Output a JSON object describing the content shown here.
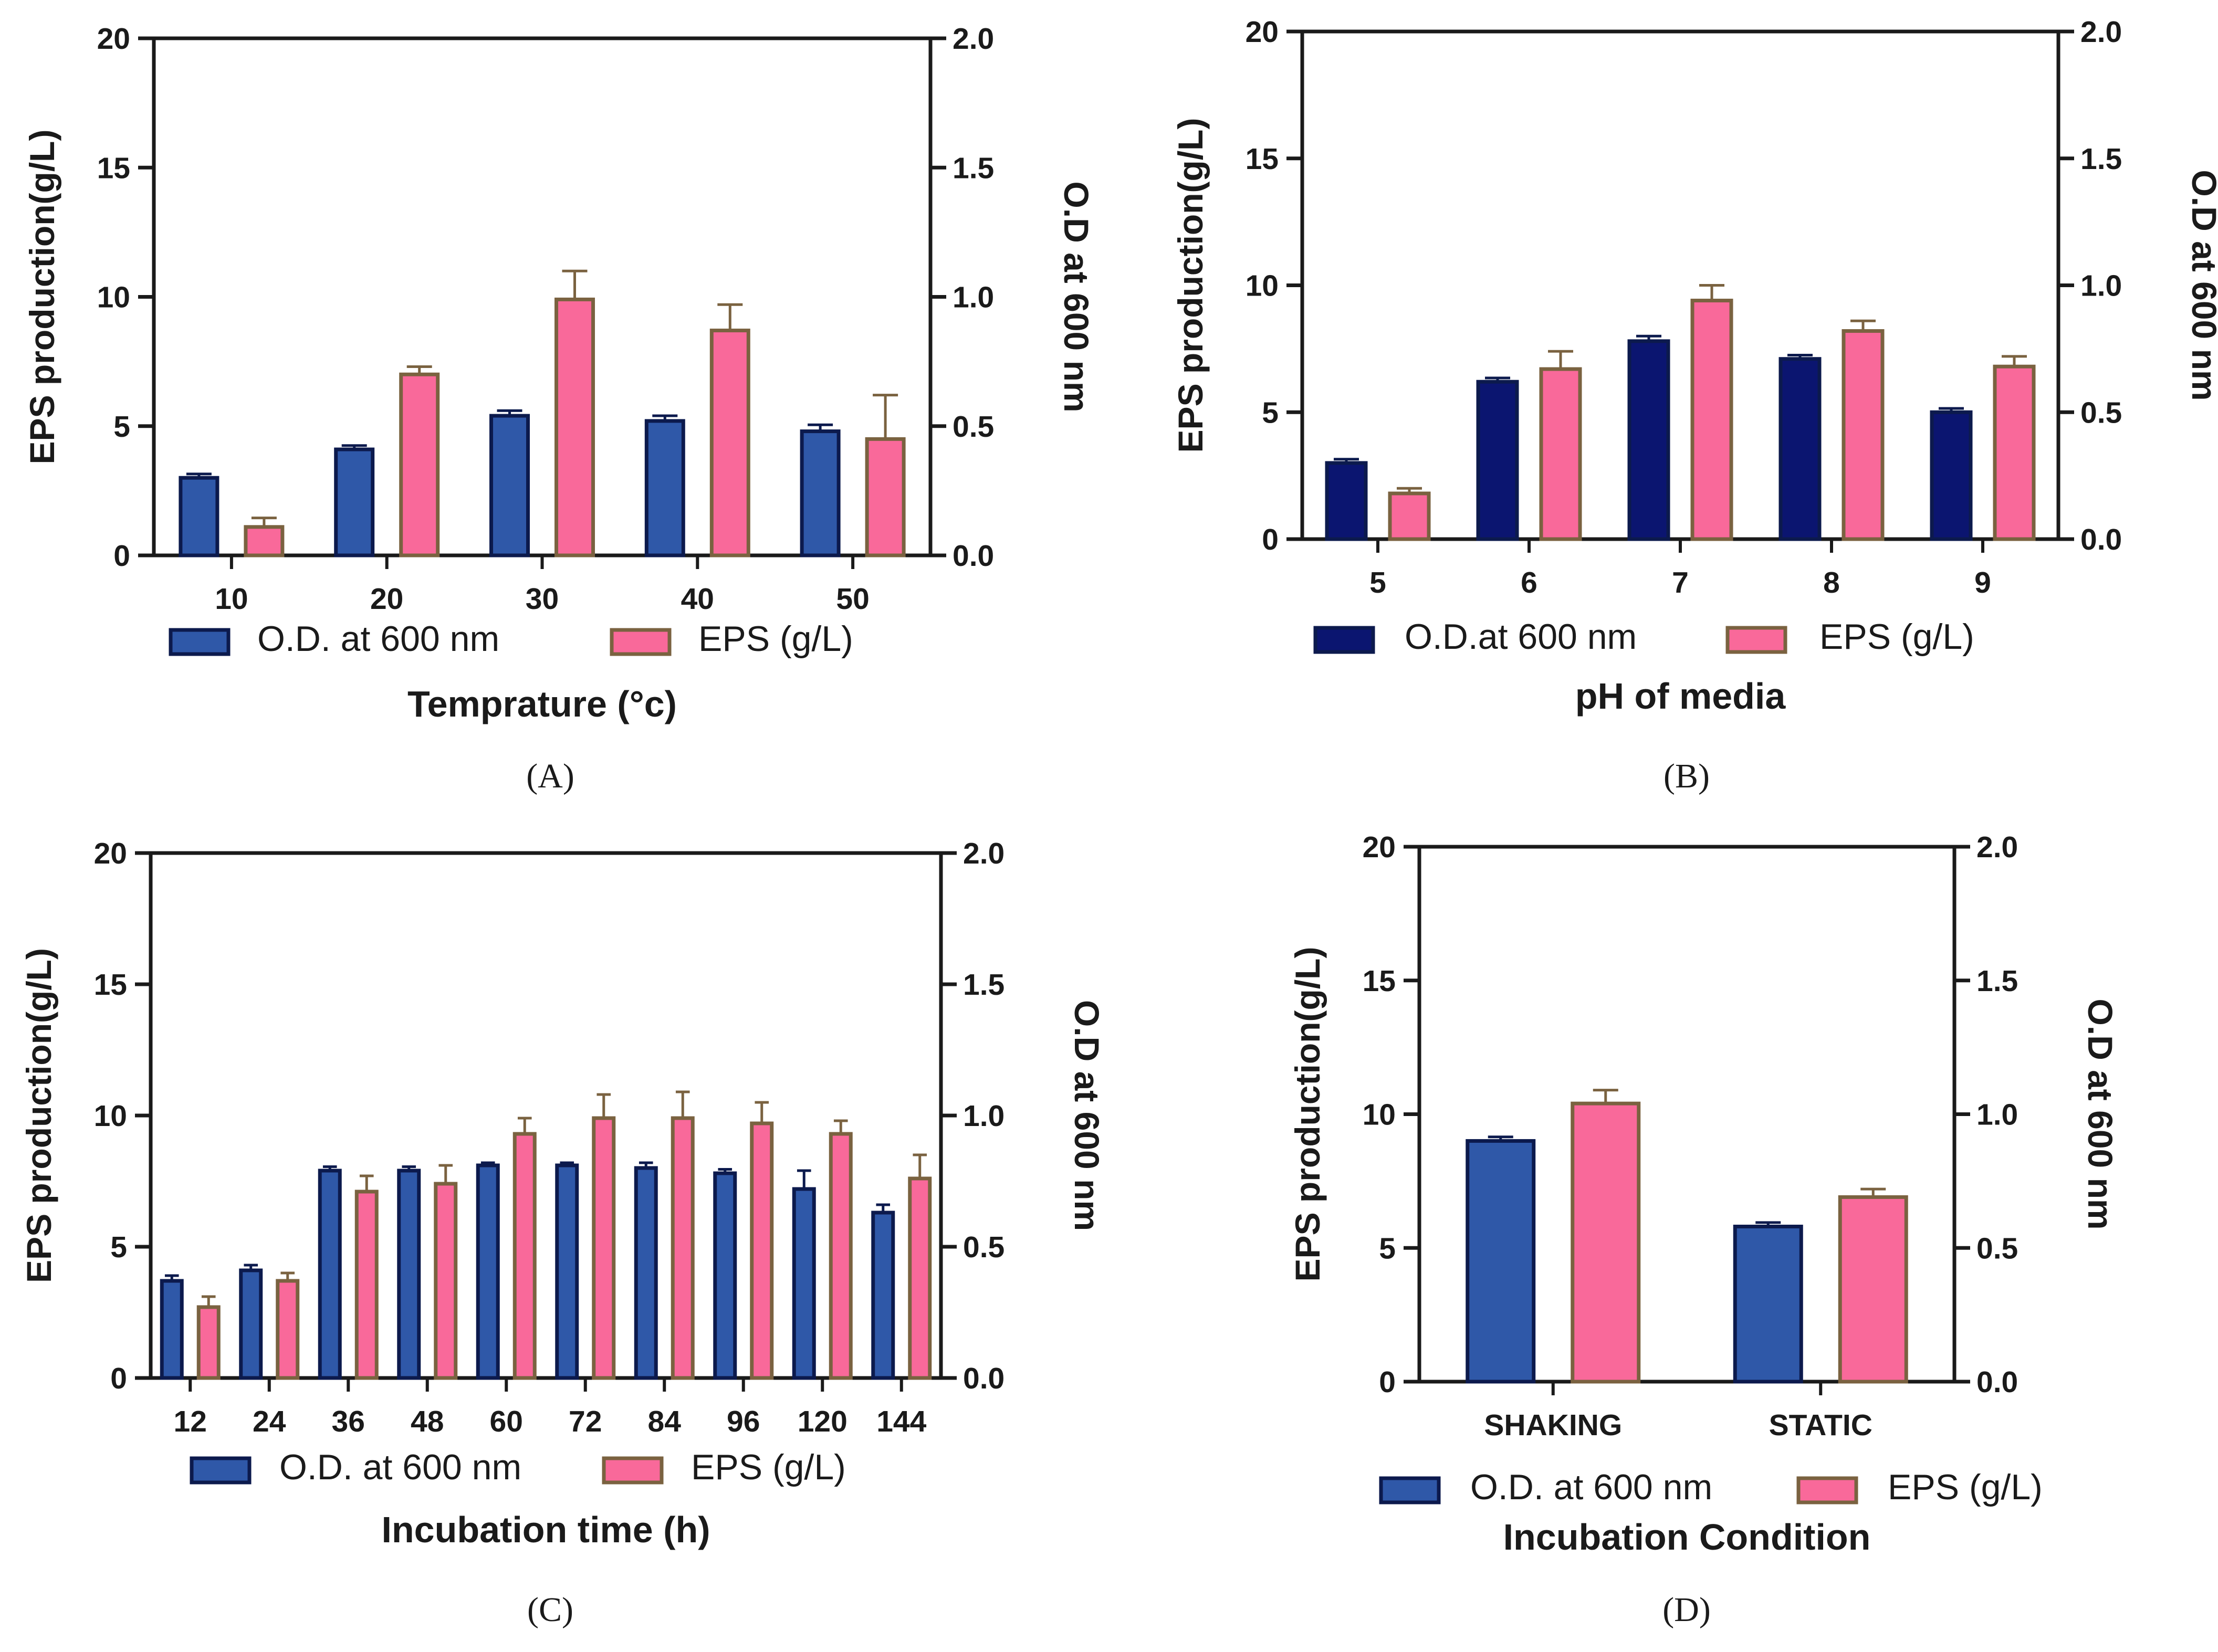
{
  "colors": {
    "od_fill": "#2f58a8",
    "od_fill_dark": "#0b1570",
    "od_stroke": "#0c1a4d",
    "eps_fill": "#f9699a",
    "eps_stroke": "#7a6240",
    "axis": "#1a1a1a"
  },
  "chart_data": [
    {
      "id": "A",
      "type": "bar",
      "caption": "(A)",
      "xlabel": "Temprature (°c)",
      "ylabel": "EPS production(g/L)",
      "y2label": "O.D at 600 nm",
      "ylim": [
        0,
        20
      ],
      "y2lim": [
        0,
        2.0
      ],
      "yticks": [
        "0",
        "5",
        "10",
        "15",
        "20"
      ],
      "y2ticks": [
        "0.0",
        "0.5",
        "1.0",
        "1.5",
        "2.0"
      ],
      "categories": [
        "10",
        "20",
        "30",
        "40",
        "50"
      ],
      "legend": {
        "od": "O.D. at 600 nm",
        "eps": "EPS (g/L)"
      },
      "series": [
        {
          "name": "O.D. at 600 nm",
          "axis": "right",
          "values": [
            0.3,
            0.41,
            0.54,
            0.52,
            0.48
          ],
          "errors": [
            0.015,
            0.015,
            0.02,
            0.02,
            0.025
          ]
        },
        {
          "name": "EPS (g/L)",
          "axis": "left",
          "values": [
            1.1,
            7.0,
            9.9,
            8.7,
            4.5
          ],
          "errors": [
            0.35,
            0.3,
            1.1,
            1.0,
            1.7
          ]
        }
      ]
    },
    {
      "id": "B",
      "type": "bar",
      "caption": "(B)",
      "xlabel": "pH of media",
      "ylabel": "EPS production(g/L)",
      "y2label": "O.D at 600 nm",
      "ylim": [
        0,
        20
      ],
      "y2lim": [
        0,
        2.0
      ],
      "yticks": [
        "0",
        "5",
        "10",
        "15",
        "20"
      ],
      "y2ticks": [
        "0.0",
        "0.5",
        "1.0",
        "1.5",
        "2.0"
      ],
      "categories": [
        "5",
        "6",
        "7",
        "8",
        "9"
      ],
      "legend": {
        "od": "O.D.at 600 nm",
        "eps": "EPS (g/L)"
      },
      "series": [
        {
          "name": "O.D.at 600 nm",
          "axis": "right",
          "values": [
            0.3,
            0.62,
            0.78,
            0.71,
            0.5
          ],
          "errors": [
            0.015,
            0.015,
            0.02,
            0.015,
            0.015
          ]
        },
        {
          "name": "EPS (g/L)",
          "axis": "left",
          "values": [
            1.8,
            6.7,
            9.4,
            8.2,
            6.8
          ],
          "errors": [
            0.2,
            0.7,
            0.6,
            0.4,
            0.4
          ]
        }
      ]
    },
    {
      "id": "C",
      "type": "bar",
      "caption": "(C)",
      "xlabel": "Incubation time (h)",
      "ylabel": "EPS production(g/L)",
      "y2label": "O.D at 600 nm",
      "ylim": [
        0,
        20
      ],
      "y2lim": [
        0,
        2.0
      ],
      "yticks": [
        "0",
        "5",
        "10",
        "15",
        "20"
      ],
      "y2ticks": [
        "0.0",
        "0.5",
        "1.0",
        "1.5",
        "2.0"
      ],
      "categories": [
        "12",
        "24",
        "36",
        "48",
        "60",
        "72",
        "84",
        "96",
        "120",
        "144"
      ],
      "legend": {
        "od": "O.D. at 600 nm",
        "eps": "EPS (g/L)"
      },
      "series": [
        {
          "name": "O.D. at 600 nm",
          "axis": "right",
          "values": [
            0.37,
            0.41,
            0.79,
            0.79,
            0.81,
            0.81,
            0.8,
            0.78,
            0.72,
            0.63
          ],
          "errors": [
            0.02,
            0.02,
            0.015,
            0.015,
            0.01,
            0.01,
            0.02,
            0.015,
            0.07,
            0.03
          ]
        },
        {
          "name": "EPS (g/L)",
          "axis": "left",
          "values": [
            2.7,
            3.7,
            7.1,
            7.4,
            9.3,
            9.9,
            9.9,
            9.7,
            9.3,
            7.6
          ],
          "errors": [
            0.4,
            0.3,
            0.6,
            0.7,
            0.6,
            0.9,
            1.0,
            0.8,
            0.5,
            0.9
          ]
        }
      ]
    },
    {
      "id": "D",
      "type": "bar",
      "caption": "(D)",
      "xlabel": "Incubation Condition",
      "ylabel": "EPS production(g/L)",
      "y2label": "O.D at 600 nm",
      "ylim": [
        0,
        20
      ],
      "y2lim": [
        0,
        2.0
      ],
      "yticks": [
        "0",
        "5",
        "10",
        "15",
        "20"
      ],
      "y2ticks": [
        "0.0",
        "0.5",
        "1.0",
        "1.5",
        "2.0"
      ],
      "categories": [
        "SHAKING",
        "STATIC"
      ],
      "legend": {
        "od": "O.D. at 600 nm",
        "eps": "EPS (g/L)"
      },
      "series": [
        {
          "name": "O.D. at 600 nm",
          "axis": "right",
          "values": [
            0.9,
            0.58
          ],
          "errors": [
            0.015,
            0.015
          ]
        },
        {
          "name": "EPS (g/L)",
          "axis": "left",
          "values": [
            10.4,
            6.9
          ],
          "errors": [
            0.5,
            0.3
          ]
        }
      ]
    }
  ]
}
